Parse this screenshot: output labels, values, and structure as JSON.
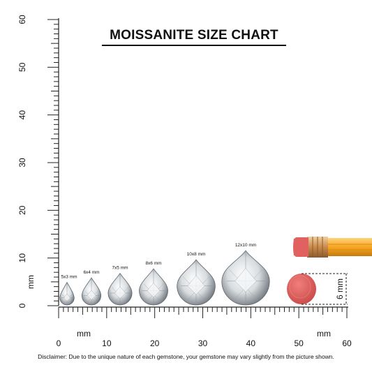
{
  "title": "MOISSANITE SIZE CHART",
  "disclaimer": "Disclaimer: Due to the unique nature of each gemstone, your gemstone may vary slightly from the picture shown.",
  "ruler_unit": "mm",
  "vertical_tick_labels": [
    "0",
    "10",
    "20",
    "30",
    "40",
    "50",
    "60"
  ],
  "horizontal_tick_labels": [
    "0",
    "10",
    "20",
    "30",
    "40",
    "50",
    "60"
  ],
  "stones": [
    {
      "label": "5x3 mm",
      "length_mm": 5,
      "width_mm": 3
    },
    {
      "label": "6x4 mm",
      "length_mm": 6,
      "width_mm": 4
    },
    {
      "label": "7x5 mm",
      "length_mm": 7,
      "width_mm": 5
    },
    {
      "label": "8x6 mm",
      "length_mm": 8,
      "width_mm": 6
    },
    {
      "label": "10x8 mm",
      "length_mm": 10,
      "width_mm": 8
    },
    {
      "label": "12x10 mm",
      "length_mm": 12,
      "width_mm": 10
    }
  ],
  "eraser_label": "6 mm",
  "colors": {
    "ruler": "#222222",
    "eraser": "#e0615f",
    "pencil": "#f5a623",
    "ferrule": "#c98a4b",
    "stone": "#d9dde0"
  },
  "icons": [
    "pencil-icon",
    "eraser-icon",
    "pear-gemstone-icon"
  ]
}
